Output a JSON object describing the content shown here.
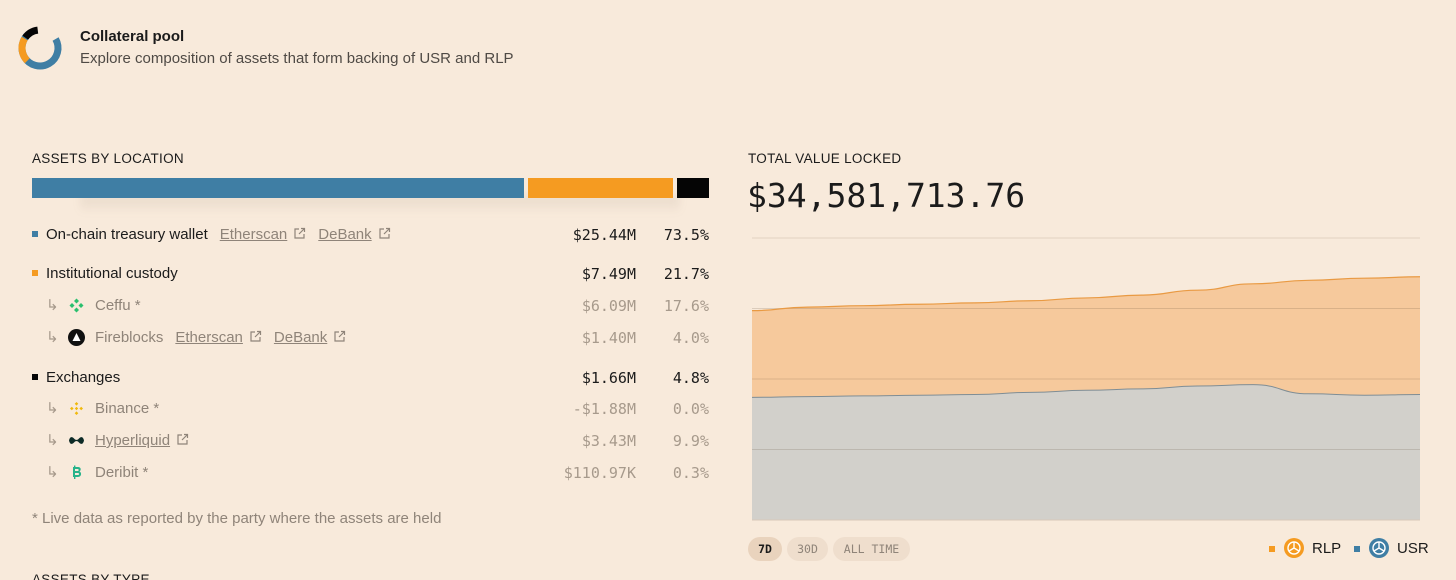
{
  "colors": {
    "background": "#f8eadb",
    "onchain": "#3f7ea4",
    "custody": "#f59b21",
    "exchanges": "#050505",
    "rlp_area": "#f6c99c",
    "rlp_line": "#e99a43",
    "usr_area": "#d2d0cb",
    "usr_line": "#7f8d95"
  },
  "header": {
    "title": "Collateral pool",
    "subtitle": "Explore composition of assets that form backing of USR and RLP"
  },
  "location": {
    "label": "ASSETS BY LOCATION",
    "bar_fractions": {
      "onchain": 0.735,
      "custody": 0.217,
      "exchanges": 0.048
    },
    "onchain": {
      "name": "On-chain treasury wallet",
      "link1": "Etherscan",
      "link2": "DeBank",
      "value": "$25.44M",
      "pct": "73.5%"
    },
    "custody": {
      "name": "Institutional custody",
      "value": "$7.49M",
      "pct": "21.7%",
      "ceffu": {
        "name": "Ceffu *",
        "value": "$6.09M",
        "pct": "17.6%",
        "icon": "ceffu-icon"
      },
      "fireblocks": {
        "name": "Fireblocks",
        "link1": "Etherscan",
        "link2": "DeBank",
        "value": "$1.40M",
        "pct": "4.0%",
        "icon": "fireblocks-icon"
      }
    },
    "exchanges": {
      "name": "Exchanges",
      "value": "$1.66M",
      "pct": "4.8%",
      "binance": {
        "name": "Binance *",
        "value": "-$1.88M",
        "pct": "0.0%",
        "icon": "binance-icon"
      },
      "hyperliquid": {
        "name": "Hyperliquid",
        "value": "$3.43M",
        "pct": "9.9%",
        "icon": "hyperliquid-icon"
      },
      "deribit": {
        "name": "Deribit *",
        "value": "$110.97K",
        "pct": "0.3%",
        "icon": "deribit-icon"
      }
    },
    "footnote": "*  Live data as reported by the party where the assets are held"
  },
  "tvl": {
    "label": "TOTAL VALUE LOCKED",
    "value": "$34,581,713.76"
  },
  "chart_data": {
    "type": "area",
    "stacked": true,
    "title": "TOTAL VALUE LOCKED",
    "x": [
      0,
      1,
      2,
      3,
      4,
      5,
      6,
      7,
      8,
      9,
      10,
      11,
      12
    ],
    "series": [
      {
        "name": "USR",
        "values": [
          17.4,
          17.5,
          17.6,
          17.7,
          17.8,
          18.1,
          18.4,
          18.6,
          19.0,
          19.2,
          17.9,
          17.7,
          17.8
        ]
      },
      {
        "name": "RLP",
        "values": [
          12.3,
          12.7,
          12.8,
          12.9,
          13.0,
          13.0,
          13.1,
          13.3,
          13.6,
          14.3,
          16.1,
          16.6,
          16.7
        ]
      }
    ],
    "ylim": [
      0,
      40
    ],
    "gridlines": [
      10,
      20,
      30
    ],
    "legend": [
      "RLP",
      "USR"
    ],
    "legend_position": "bottom-right"
  },
  "timeframes": [
    "7D",
    "30D",
    "ALL TIME"
  ],
  "timeframe_selected": "7D",
  "legend": {
    "rlp": "RLP",
    "usr": "USR"
  },
  "next_section": "ASSETS BY TYPE"
}
